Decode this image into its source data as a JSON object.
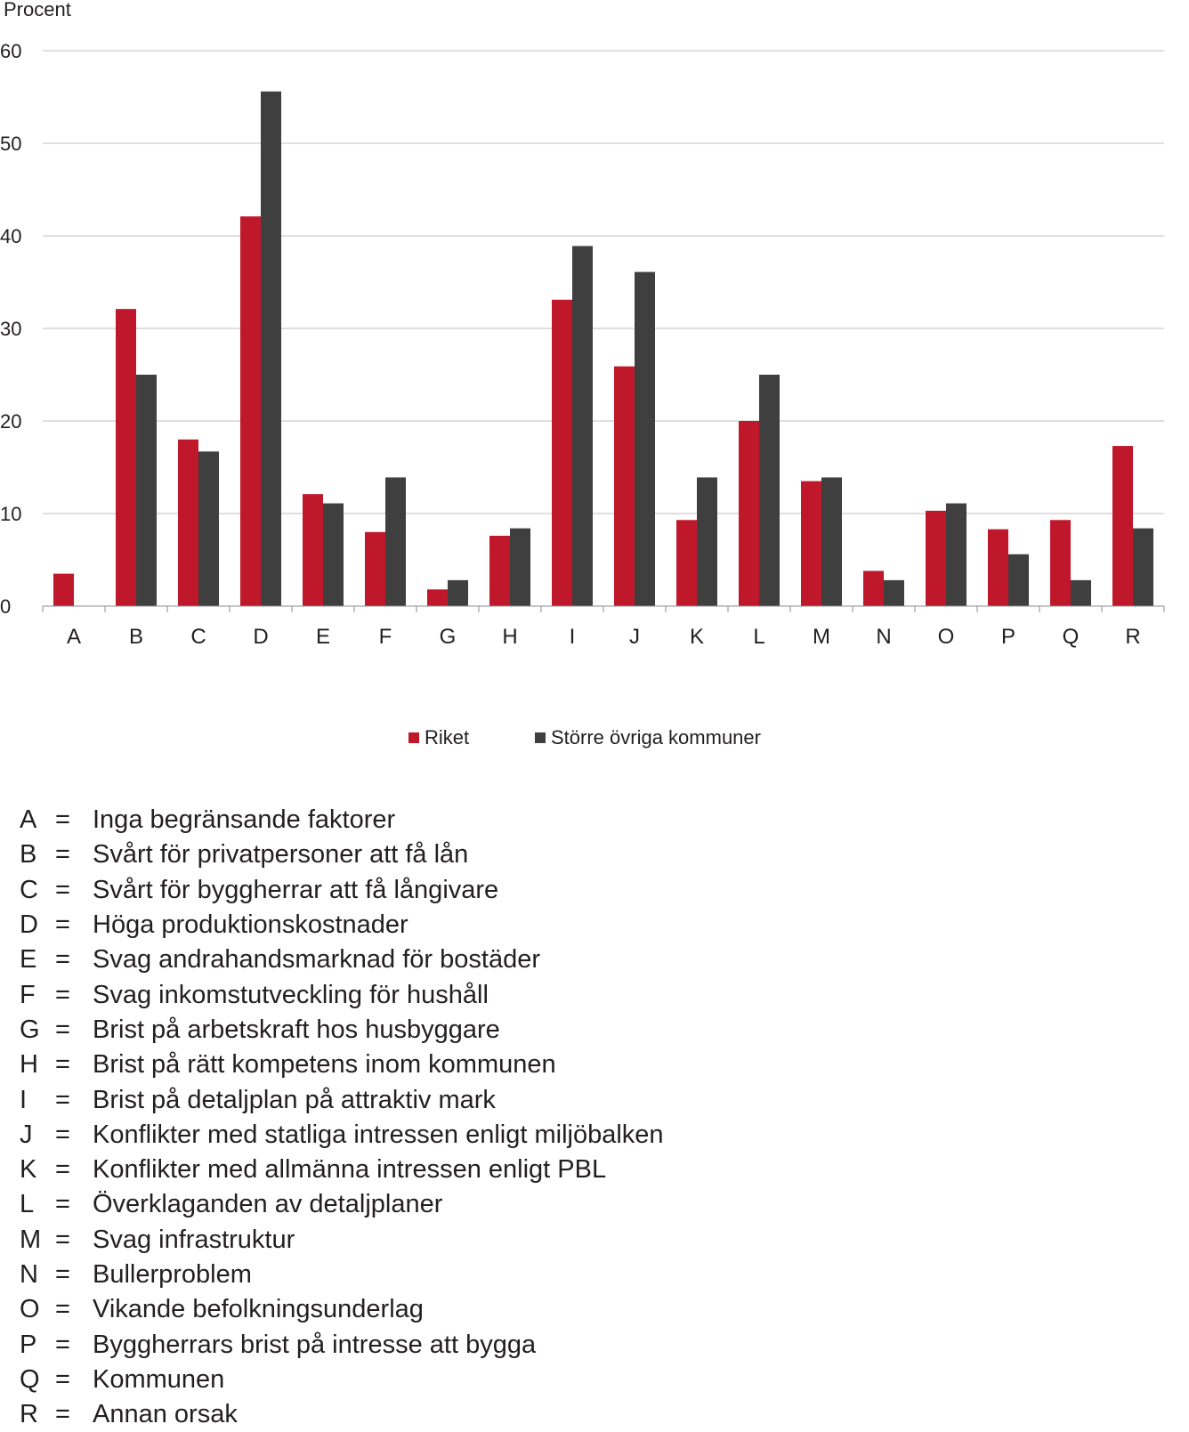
{
  "chart_data": {
    "type": "bar",
    "ylabel": "Procent",
    "ylim": [
      0,
      60
    ],
    "yticks": [
      0,
      10,
      20,
      30,
      40,
      50,
      60
    ],
    "grid": true,
    "legend_position": "bottom",
    "categories": [
      "A",
      "B",
      "C",
      "D",
      "E",
      "F",
      "G",
      "H",
      "I",
      "J",
      "K",
      "L",
      "M",
      "N",
      "O",
      "P",
      "Q",
      "R"
    ],
    "series": [
      {
        "name": "Riket",
        "color": "#c0182b",
        "values": [
          3.5,
          32.1,
          18.0,
          42.1,
          12.1,
          8.0,
          1.8,
          7.6,
          33.1,
          25.9,
          9.3,
          20.0,
          13.5,
          3.8,
          10.3,
          8.3,
          9.3,
          17.3
        ]
      },
      {
        "name": "Större övriga kommuner",
        "color": "#3f3f3f",
        "values": [
          0,
          25.0,
          16.7,
          55.6,
          11.1,
          13.9,
          2.8,
          8.4,
          38.9,
          36.1,
          13.9,
          25.0,
          13.9,
          2.8,
          11.1,
          5.6,
          2.8,
          8.4
        ]
      }
    ]
  },
  "legend": {
    "items": [
      {
        "label": "Riket",
        "color": "#c0182b"
      },
      {
        "label": "Större övriga kommuner",
        "color": "#3f3f3f"
      }
    ]
  },
  "key": {
    "items": [
      {
        "letter": "A",
        "eq": "=",
        "text": "Inga begränsande faktorer"
      },
      {
        "letter": "B",
        "eq": "=",
        "text": "Svårt för privatpersoner att få lån"
      },
      {
        "letter": "C",
        "eq": "=",
        "text": "Svårt för byggherrar att få långivare"
      },
      {
        "letter": "D",
        "eq": "=",
        "text": "Höga produktionskostnader"
      },
      {
        "letter": "E",
        "eq": "=",
        "text": "Svag andrahandsmarknad för bostäder"
      },
      {
        "letter": "F",
        "eq": "=",
        "text": "Svag inkomstutveckling för hushåll"
      },
      {
        "letter": "G",
        "eq": "=",
        "text": "Brist på arbetskraft hos husbyggare"
      },
      {
        "letter": "H",
        "eq": "=",
        "text": "Brist på rätt kompetens inom kommunen"
      },
      {
        "letter": "I",
        "eq": "=",
        "text": "Brist på detaljplan på attraktiv mark"
      },
      {
        "letter": "J",
        "eq": "=",
        "text": "Konflikter med statliga intressen enligt miljöbalken"
      },
      {
        "letter": "K",
        "eq": "=",
        "text": "Konflikter med allmänna intressen enligt PBL"
      },
      {
        "letter": "L",
        "eq": "=",
        "text": "Överklaganden av detaljplaner"
      },
      {
        "letter": "M",
        "eq": "=",
        "text": "Svag infrastruktur"
      },
      {
        "letter": "N",
        "eq": "=",
        "text": "Bullerproblem"
      },
      {
        "letter": "O",
        "eq": "=",
        "text": "Vikande befolkningsunderlag"
      },
      {
        "letter": "P",
        "eq": "=",
        "text": "Byggherrars brist på intresse att bygga"
      },
      {
        "letter": "Q",
        "eq": "=",
        "text": "Kommunen"
      },
      {
        "letter": "R",
        "eq": "=",
        "text": "Annan orsak"
      }
    ]
  }
}
